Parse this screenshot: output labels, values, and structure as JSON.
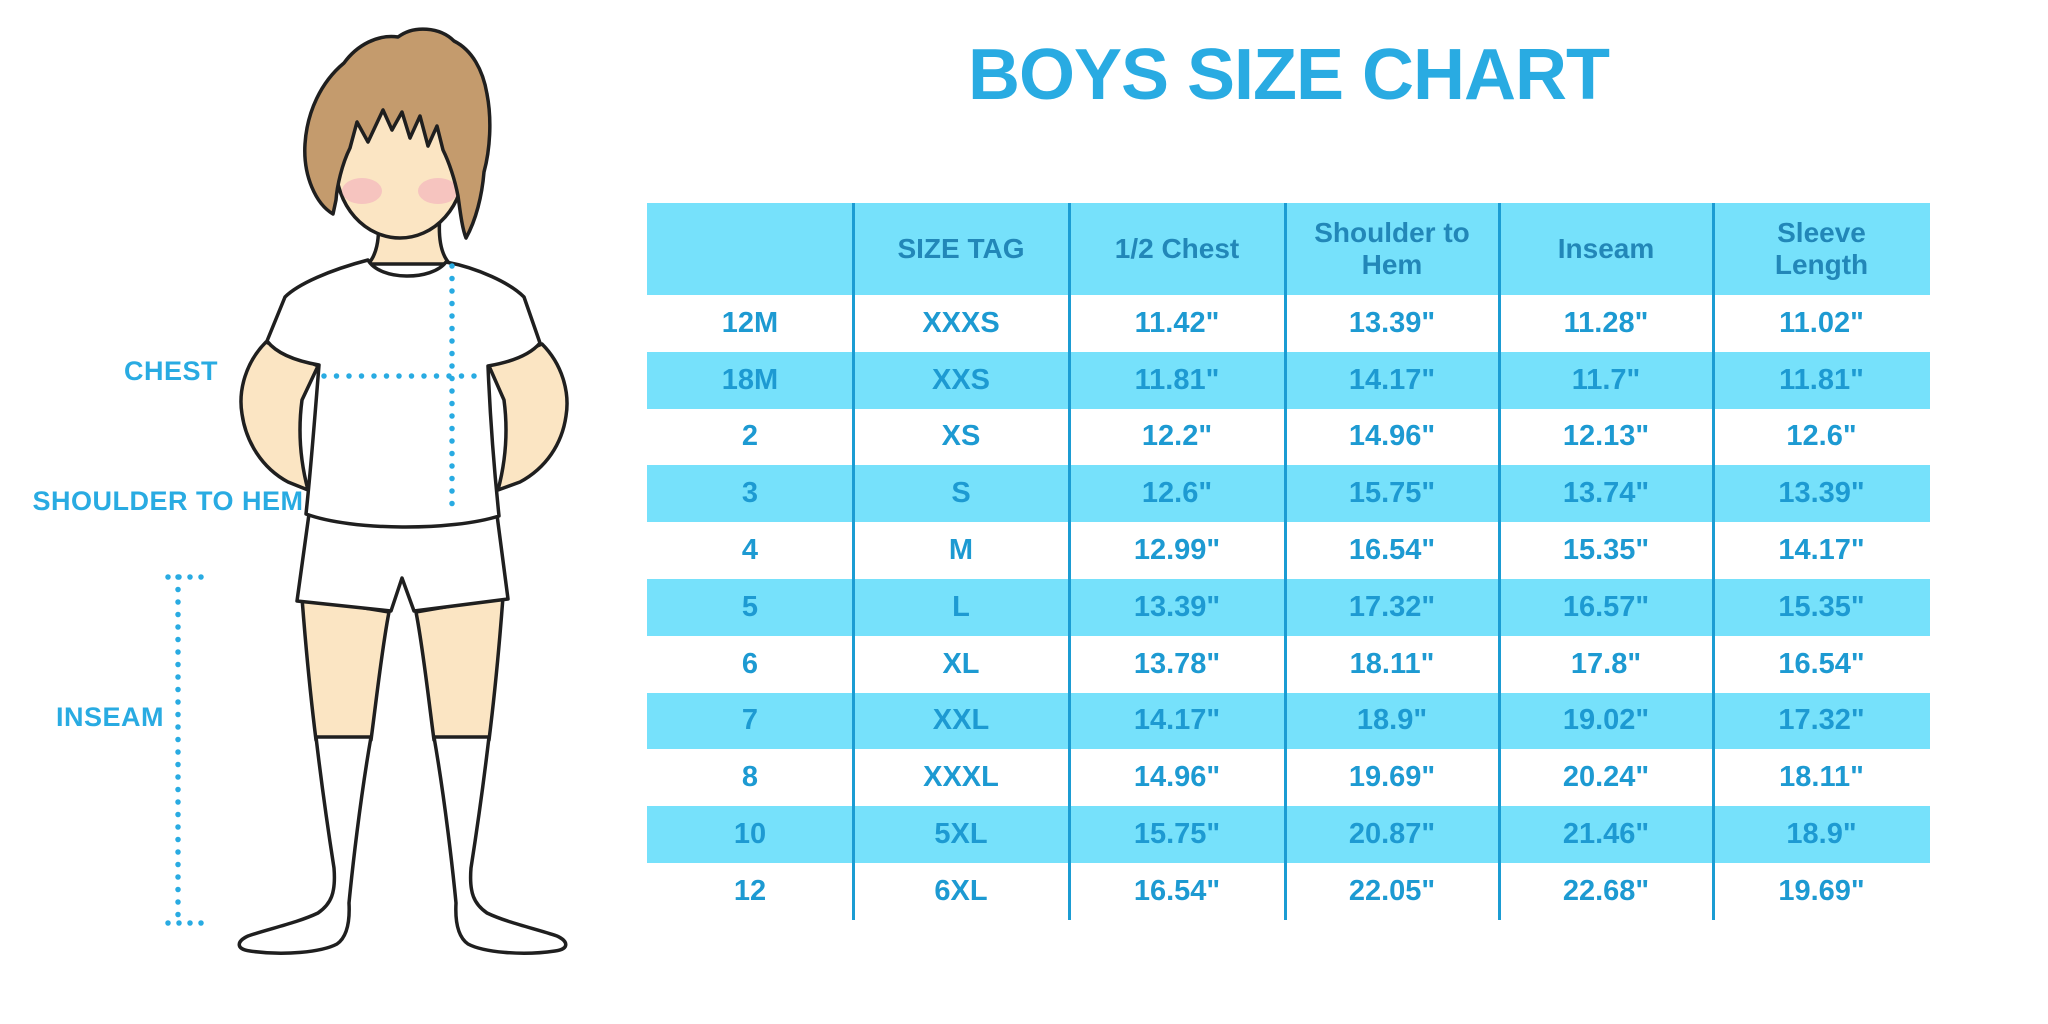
{
  "title": "BOYS SIZE CHART",
  "figure": {
    "labels": {
      "chest": "CHEST",
      "shoulder_to_hem": "SHOULDER TO HEM",
      "inseam": "INSEAM"
    }
  },
  "chart_data": {
    "type": "table",
    "title": "BOYS SIZE CHART",
    "columns": [
      "",
      "SIZE TAG",
      "1/2 Chest",
      "Shoulder to Hem",
      "Inseam",
      "Sleeve Length"
    ],
    "rows": [
      [
        "12M",
        "XXXS",
        "11.42\"",
        "13.39\"",
        "11.28\"",
        "11.02\""
      ],
      [
        "18M",
        "XXS",
        "11.81\"",
        "14.17\"",
        "11.7\"",
        "11.81\""
      ],
      [
        "2",
        "XS",
        "12.2\"",
        "14.96\"",
        "12.13\"",
        "12.6\""
      ],
      [
        "3",
        "S",
        "12.6\"",
        "15.75\"",
        "13.74\"",
        "13.39\""
      ],
      [
        "4",
        "M",
        "12.99\"",
        "16.54\"",
        "15.35\"",
        "14.17\""
      ],
      [
        "5",
        "L",
        "13.39\"",
        "17.32\"",
        "16.57\"",
        "15.35\""
      ],
      [
        "6",
        "XL",
        "13.78\"",
        "18.11\"",
        "17.8\"",
        "16.54\""
      ],
      [
        "7",
        "XXL",
        "14.17\"",
        "18.9\"",
        "19.02\"",
        "17.32\""
      ],
      [
        "8",
        "XXXL",
        "14.96\"",
        "19.69\"",
        "20.24\"",
        "18.11\""
      ],
      [
        "10",
        "5XL",
        "15.75\"",
        "20.87\"",
        "21.46\"",
        "18.9\""
      ],
      [
        "12",
        "6XL",
        "16.54\"",
        "22.05\"",
        "22.68\"",
        "19.69\""
      ]
    ]
  },
  "colors": {
    "accent": "#29ABE2",
    "table_bg": "#76E1FB",
    "divider": "#1B9CD3",
    "header_text": "#2287B8",
    "cell_text": "#1D9AD2",
    "skin": "#FBE5C3",
    "hair": "#C49B6D",
    "blush": "#F2A9BC",
    "outline": "#1F1F1F"
  }
}
